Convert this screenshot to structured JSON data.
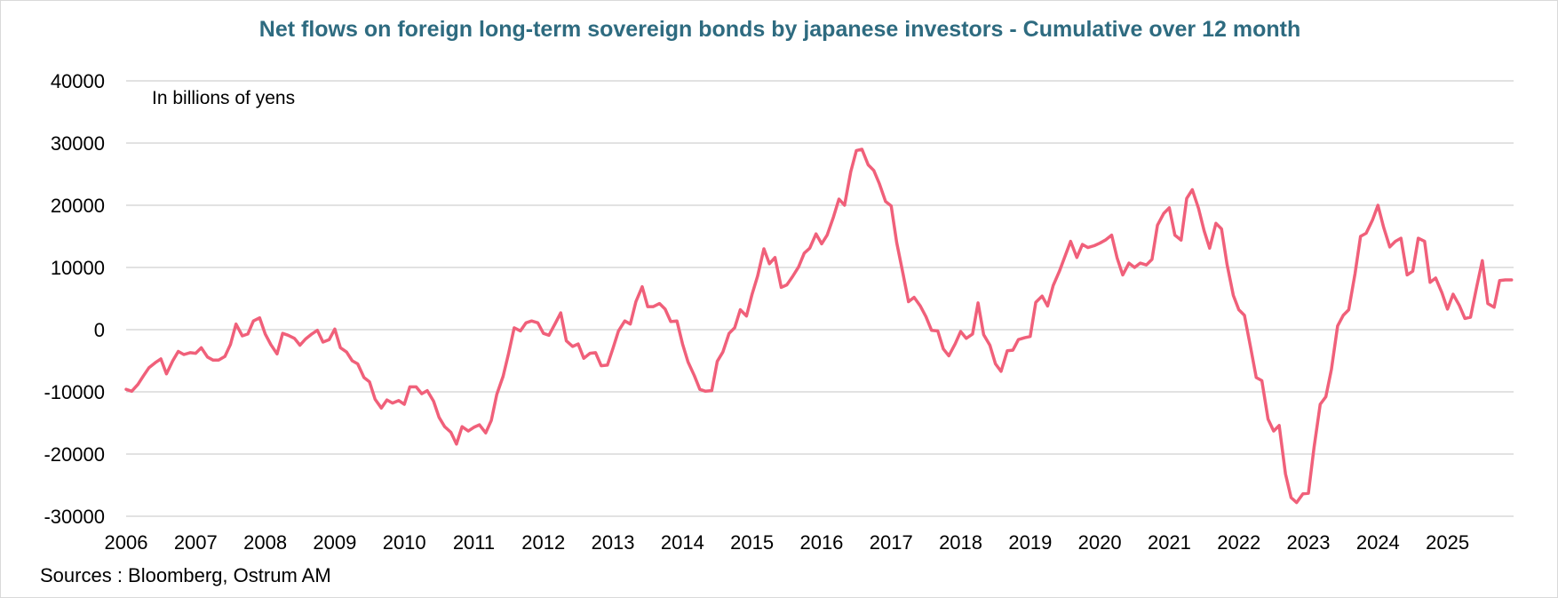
{
  "chart_data": {
    "type": "line",
    "title": "Net flows on foreign long-term sovereign bonds by japanese investors - Cumulative over 12 month",
    "annotation": "In billions of yens",
    "source": "Sources : Bloomberg, Ostrum AM",
    "xlabel": "",
    "ylabel": "",
    "ylim": [
      -30000,
      40000
    ],
    "yticks": [
      40000,
      30000,
      20000,
      10000,
      0,
      -10000,
      -20000,
      -30000
    ],
    "xlim": [
      2006,
      2025.95
    ],
    "xticks": [
      2006,
      2007,
      2008,
      2009,
      2010,
      2011,
      2012,
      2013,
      2014,
      2015,
      2016,
      2017,
      2018,
      2019,
      2020,
      2021,
      2022,
      2023,
      2024,
      2025
    ],
    "grid": true,
    "line_color": "#f0607a",
    "series": [
      {
        "name": "Net flows (12m cumulative)",
        "points": [
          [
            2006.0,
            -9600
          ],
          [
            2006.08,
            -9900
          ],
          [
            2006.17,
            -8800
          ],
          [
            2006.25,
            -7400
          ],
          [
            2006.33,
            -6100
          ],
          [
            2006.42,
            -5300
          ],
          [
            2006.5,
            -4700
          ],
          [
            2006.58,
            -7100
          ],
          [
            2006.67,
            -5000
          ],
          [
            2006.75,
            -3500
          ],
          [
            2006.83,
            -4000
          ],
          [
            2006.92,
            -3700
          ],
          [
            2007.0,
            -3800
          ],
          [
            2007.08,
            -2900
          ],
          [
            2007.17,
            -4400
          ],
          [
            2007.25,
            -4900
          ],
          [
            2007.33,
            -4900
          ],
          [
            2007.42,
            -4300
          ],
          [
            2007.5,
            -2400
          ],
          [
            2007.58,
            900
          ],
          [
            2007.67,
            -1000
          ],
          [
            2007.75,
            -700
          ],
          [
            2007.83,
            1400
          ],
          [
            2007.92,
            1900
          ],
          [
            2008.0,
            -700
          ],
          [
            2008.08,
            -2400
          ],
          [
            2008.17,
            -3900
          ],
          [
            2008.25,
            -600
          ],
          [
            2008.33,
            -900
          ],
          [
            2008.42,
            -1400
          ],
          [
            2008.5,
            -2500
          ],
          [
            2008.58,
            -1500
          ],
          [
            2008.67,
            -700
          ],
          [
            2008.75,
            -100
          ],
          [
            2008.83,
            -2000
          ],
          [
            2008.92,
            -1600
          ],
          [
            2009.0,
            100
          ],
          [
            2009.08,
            -2900
          ],
          [
            2009.17,
            -3600
          ],
          [
            2009.25,
            -5000
          ],
          [
            2009.33,
            -5500
          ],
          [
            2009.42,
            -7700
          ],
          [
            2009.5,
            -8400
          ],
          [
            2009.58,
            -11200
          ],
          [
            2009.67,
            -12600
          ],
          [
            2009.75,
            -11300
          ],
          [
            2009.83,
            -11800
          ],
          [
            2009.92,
            -11400
          ],
          [
            2010.0,
            -12000
          ],
          [
            2010.08,
            -9200
          ],
          [
            2010.17,
            -9200
          ],
          [
            2010.25,
            -10300
          ],
          [
            2010.33,
            -9800
          ],
          [
            2010.42,
            -11500
          ],
          [
            2010.5,
            -14100
          ],
          [
            2010.58,
            -15600
          ],
          [
            2010.67,
            -16500
          ],
          [
            2010.75,
            -18400
          ],
          [
            2010.83,
            -15600
          ],
          [
            2010.92,
            -16300
          ],
          [
            2011.0,
            -15700
          ],
          [
            2011.08,
            -15300
          ],
          [
            2011.17,
            -16600
          ],
          [
            2011.25,
            -14600
          ],
          [
            2011.33,
            -10400
          ],
          [
            2011.42,
            -7500
          ],
          [
            2011.5,
            -3800
          ],
          [
            2011.58,
            300
          ],
          [
            2011.67,
            -200
          ],
          [
            2011.75,
            1100
          ],
          [
            2011.83,
            1400
          ],
          [
            2011.92,
            1100
          ],
          [
            2012.0,
            -600
          ],
          [
            2012.08,
            -900
          ],
          [
            2012.17,
            1000
          ],
          [
            2012.25,
            2700
          ],
          [
            2012.33,
            -1800
          ],
          [
            2012.42,
            -2700
          ],
          [
            2012.5,
            -2300
          ],
          [
            2012.58,
            -4600
          ],
          [
            2012.67,
            -3800
          ],
          [
            2012.75,
            -3700
          ],
          [
            2012.83,
            -5800
          ],
          [
            2012.92,
            -5700
          ],
          [
            2013.0,
            -3000
          ],
          [
            2013.08,
            -200
          ],
          [
            2013.17,
            1400
          ],
          [
            2013.25,
            900
          ],
          [
            2013.33,
            4500
          ],
          [
            2013.42,
            6900
          ],
          [
            2013.5,
            3700
          ],
          [
            2013.58,
            3700
          ],
          [
            2013.67,
            4200
          ],
          [
            2013.75,
            3300
          ],
          [
            2013.83,
            1300
          ],
          [
            2013.92,
            1400
          ],
          [
            2014.0,
            -2300
          ],
          [
            2014.08,
            -5200
          ],
          [
            2014.17,
            -7400
          ],
          [
            2014.25,
            -9600
          ],
          [
            2014.33,
            -9900
          ],
          [
            2014.42,
            -9800
          ],
          [
            2014.5,
            -5100
          ],
          [
            2014.58,
            -3600
          ],
          [
            2014.67,
            -600
          ],
          [
            2014.75,
            300
          ],
          [
            2014.83,
            3200
          ],
          [
            2014.92,
            2200
          ],
          [
            2015.0,
            5700
          ],
          [
            2015.08,
            8600
          ],
          [
            2015.17,
            13000
          ],
          [
            2015.25,
            10600
          ],
          [
            2015.33,
            11600
          ],
          [
            2015.42,
            6800
          ],
          [
            2015.5,
            7200
          ],
          [
            2015.58,
            8500
          ],
          [
            2015.67,
            10100
          ],
          [
            2015.75,
            12300
          ],
          [
            2015.83,
            13100
          ],
          [
            2015.92,
            15400
          ],
          [
            2016.0,
            13800
          ],
          [
            2016.08,
            15200
          ],
          [
            2016.17,
            18100
          ],
          [
            2016.25,
            21000
          ],
          [
            2016.33,
            20000
          ],
          [
            2016.42,
            25400
          ],
          [
            2016.5,
            28800
          ],
          [
            2016.58,
            29000
          ],
          [
            2016.67,
            26500
          ],
          [
            2016.75,
            25600
          ],
          [
            2016.83,
            23500
          ],
          [
            2016.92,
            20600
          ],
          [
            2017.0,
            19900
          ],
          [
            2017.08,
            14000
          ],
          [
            2017.17,
            9000
          ],
          [
            2017.25,
            4500
          ],
          [
            2017.33,
            5200
          ],
          [
            2017.42,
            3800
          ],
          [
            2017.5,
            2100
          ],
          [
            2017.58,
            -100
          ],
          [
            2017.67,
            -200
          ],
          [
            2017.75,
            -3100
          ],
          [
            2017.83,
            -4200
          ],
          [
            2017.92,
            -2300
          ],
          [
            2018.0,
            -300
          ],
          [
            2018.08,
            -1400
          ],
          [
            2018.17,
            -700
          ],
          [
            2018.25,
            4300
          ],
          [
            2018.33,
            -800
          ],
          [
            2018.42,
            -2500
          ],
          [
            2018.5,
            -5500
          ],
          [
            2018.58,
            -6700
          ],
          [
            2018.67,
            -3400
          ],
          [
            2018.75,
            -3300
          ],
          [
            2018.83,
            -1600
          ],
          [
            2018.92,
            -1300
          ],
          [
            2019.0,
            -1100
          ],
          [
            2019.08,
            4400
          ],
          [
            2019.17,
            5400
          ],
          [
            2019.25,
            3800
          ],
          [
            2019.33,
            7100
          ],
          [
            2019.42,
            9400
          ],
          [
            2019.5,
            11800
          ],
          [
            2019.58,
            14200
          ],
          [
            2019.67,
            11600
          ],
          [
            2019.75,
            13700
          ],
          [
            2019.83,
            13200
          ],
          [
            2019.92,
            13500
          ],
          [
            2020.0,
            13900
          ],
          [
            2020.08,
            14400
          ],
          [
            2020.17,
            15200
          ],
          [
            2020.25,
            11500
          ],
          [
            2020.33,
            8800
          ],
          [
            2020.42,
            10700
          ],
          [
            2020.5,
            10000
          ],
          [
            2020.58,
            10700
          ],
          [
            2020.67,
            10400
          ],
          [
            2020.75,
            11300
          ],
          [
            2020.83,
            16800
          ],
          [
            2020.92,
            18700
          ],
          [
            2021.0,
            19600
          ],
          [
            2021.08,
            15200
          ],
          [
            2021.17,
            14400
          ],
          [
            2021.25,
            21100
          ],
          [
            2021.33,
            22500
          ],
          [
            2021.42,
            19500
          ],
          [
            2021.5,
            15900
          ],
          [
            2021.58,
            13100
          ],
          [
            2021.67,
            17100
          ],
          [
            2021.75,
            16200
          ],
          [
            2021.83,
            10500
          ],
          [
            2021.92,
            5500
          ],
          [
            2022.0,
            3200
          ],
          [
            2022.08,
            2300
          ],
          [
            2022.17,
            -2900
          ],
          [
            2022.25,
            -7700
          ],
          [
            2022.33,
            -8200
          ],
          [
            2022.42,
            -14400
          ],
          [
            2022.5,
            -16300
          ],
          [
            2022.58,
            -15400
          ],
          [
            2022.67,
            -23200
          ],
          [
            2022.75,
            -27000
          ],
          [
            2022.83,
            -27800
          ],
          [
            2022.92,
            -26400
          ],
          [
            2023.0,
            -26300
          ],
          [
            2023.08,
            -19000
          ],
          [
            2023.17,
            -12000
          ],
          [
            2023.25,
            -10800
          ],
          [
            2023.33,
            -6400
          ],
          [
            2023.42,
            600
          ],
          [
            2023.5,
            2300
          ],
          [
            2023.58,
            3200
          ],
          [
            2023.67,
            9000
          ],
          [
            2023.75,
            15000
          ],
          [
            2023.83,
            15500
          ],
          [
            2023.92,
            17600
          ],
          [
            2024.0,
            20000
          ],
          [
            2024.08,
            16500
          ],
          [
            2024.17,
            13300
          ],
          [
            2024.25,
            14200
          ],
          [
            2024.33,
            14700
          ],
          [
            2024.42,
            8800
          ],
          [
            2024.5,
            9400
          ],
          [
            2024.58,
            14700
          ],
          [
            2024.67,
            14200
          ],
          [
            2024.75,
            7600
          ],
          [
            2024.83,
            8300
          ],
          [
            2024.92,
            5900
          ],
          [
            2025.0,
            3300
          ],
          [
            2025.08,
            5700
          ],
          [
            2025.17,
            3900
          ],
          [
            2025.25,
            1800
          ],
          [
            2025.33,
            2000
          ],
          [
            2025.42,
            6900
          ],
          [
            2025.5,
            11100
          ],
          [
            2025.58,
            4200
          ],
          [
            2025.67,
            3600
          ],
          [
            2025.75,
            7900
          ],
          [
            2025.83,
            8000
          ],
          [
            2025.92,
            8000
          ]
        ]
      }
    ]
  }
}
